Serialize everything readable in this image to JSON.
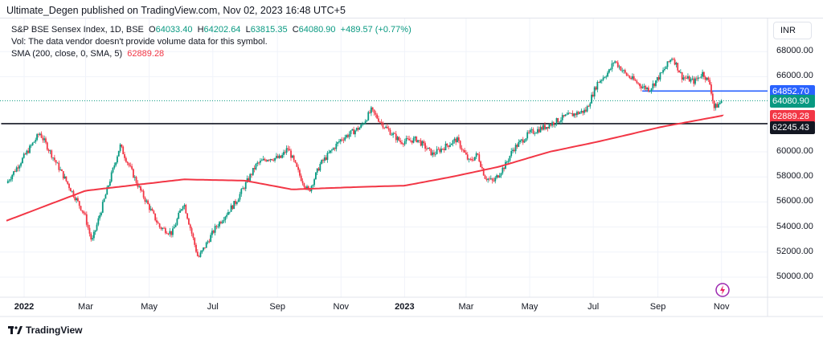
{
  "header": {
    "published": "Ultimate_Degen published on TradingView.com, Nov 02, 2023 16:48 UTC+5"
  },
  "legend": {
    "symbol": "S&P BSE Sensex Index, 1D, BSE",
    "o_label": "O",
    "o": "64033.40",
    "h_label": "H",
    "h": "64202.64",
    "l_label": "L",
    "l": "63815.35",
    "c_label": "C",
    "c": "64080.90",
    "change": "+489.57 (+0.77%)",
    "vol": "Vol: The data vendor doesn't provide volume data for this symbol.",
    "sma_label": "SMA (200, close, 0, SMA, 5)",
    "sma_value": "62889.28"
  },
  "currency": "INR",
  "footer": {
    "brand": "TradingView"
  },
  "colors": {
    "up": "#089981",
    "down": "#f23645",
    "sma": "#f23645",
    "resistance": "#2962ff",
    "support": "#131722"
  },
  "chart_data": {
    "type": "candlestick",
    "y_ticks": [
      "68000.00",
      "66000.00",
      "60000.00",
      "58000.00",
      "56000.00",
      "54000.00",
      "52000.00",
      "50000.00"
    ],
    "y_tick_values": [
      68000,
      66000,
      60000,
      58000,
      56000,
      54000,
      52000,
      50000
    ],
    "x_ticks": [
      "2022",
      "Mar",
      "May",
      "Jul",
      "Sep",
      "Nov",
      "2023",
      "Mar",
      "May",
      "Jul",
      "Sep",
      "Nov"
    ],
    "x_tick_dates": [
      "2022-01-01",
      "2022-03-01",
      "2022-05-01",
      "2022-07-01",
      "2022-09-01",
      "2022-11-01",
      "2023-01-01",
      "2023-03-01",
      "2023-05-01",
      "2023-07-01",
      "2023-09-01",
      "2023-11-01"
    ],
    "price_labels": [
      {
        "value": 64852.7,
        "text": "64852.70",
        "color": "#2962ff"
      },
      {
        "value": 64080.9,
        "text": "64080.90",
        "color": "#089981"
      },
      {
        "value": 62889.28,
        "text": "62889.28",
        "color": "#f23645"
      },
      {
        "value": 62245.43,
        "text": "62245.43",
        "color": "#131722"
      }
    ],
    "horizontal_lines": [
      {
        "value": 64852.7,
        "from": "2023-08-17",
        "color": "#2962ff"
      },
      {
        "value": 62245.43,
        "from": "2021-12-10",
        "color": "#131722"
      }
    ],
    "close_waypoints": [
      [
        "2021-12-15",
        57500
      ],
      [
        "2022-01-16",
        61500
      ],
      [
        "2022-02-28",
        55000
      ],
      [
        "2022-03-07",
        52800
      ],
      [
        "2022-04-03",
        60500
      ],
      [
        "2022-04-22",
        57000
      ],
      [
        "2022-05-11",
        54000
      ],
      [
        "2022-05-23",
        53500
      ],
      [
        "2022-06-03",
        56000
      ],
      [
        "2022-06-17",
        51500
      ],
      [
        "2022-07-04",
        54000
      ],
      [
        "2022-07-23",
        56000
      ],
      [
        "2022-08-12",
        59000
      ],
      [
        "2022-08-23",
        59500
      ],
      [
        "2022-09-04",
        59500
      ],
      [
        "2022-09-11",
        60300
      ],
      [
        "2022-09-23",
        58000
      ],
      [
        "2022-10-01",
        56800
      ],
      [
        "2022-10-12",
        59000
      ],
      [
        "2022-11-01",
        61000
      ],
      [
        "2022-11-20",
        62000
      ],
      [
        "2022-11-30",
        63300
      ],
      [
        "2022-12-13",
        62000
      ],
      [
        "2022-12-28",
        60800
      ],
      [
        "2023-01-13",
        61000
      ],
      [
        "2023-01-28",
        59800
      ],
      [
        "2023-02-20",
        61000
      ],
      [
        "2023-03-04",
        59200
      ],
      [
        "2023-03-12",
        59800
      ],
      [
        "2023-03-19",
        58000
      ],
      [
        "2023-03-27",
        57600
      ],
      [
        "2023-04-08",
        59000
      ],
      [
        "2023-04-15",
        60200
      ],
      [
        "2023-05-01",
        61500
      ],
      [
        "2023-05-16",
        62000
      ],
      [
        "2023-06-04",
        62800
      ],
      [
        "2023-06-24",
        63300
      ],
      [
        "2023-07-05",
        65500
      ],
      [
        "2023-07-17",
        66500
      ],
      [
        "2023-07-21",
        67300
      ],
      [
        "2023-08-01",
        66200
      ],
      [
        "2023-08-17",
        65200
      ],
      [
        "2023-08-24",
        65000
      ],
      [
        "2023-09-05",
        66300
      ],
      [
        "2023-09-15",
        67600
      ],
      [
        "2023-09-24",
        66000
      ],
      [
        "2023-10-06",
        65600
      ],
      [
        "2023-10-14",
        66300
      ],
      [
        "2023-10-21",
        65400
      ],
      [
        "2023-10-25",
        63500
      ],
      [
        "2023-11-02",
        64080.9
      ]
    ],
    "sma_waypoints": [
      [
        "2021-12-15",
        54500
      ],
      [
        "2022-03-01",
        56900
      ],
      [
        "2022-06-03",
        57800
      ],
      [
        "2022-08-01",
        57700
      ],
      [
        "2022-09-15",
        57000
      ],
      [
        "2022-11-20",
        57200
      ],
      [
        "2023-01-01",
        57300
      ],
      [
        "2023-02-15",
        58000
      ],
      [
        "2023-04-01",
        58800
      ],
      [
        "2023-05-20",
        60000
      ],
      [
        "2023-07-05",
        60800
      ],
      [
        "2023-09-05",
        62000
      ],
      [
        "2023-11-02",
        62889.28
      ]
    ]
  }
}
